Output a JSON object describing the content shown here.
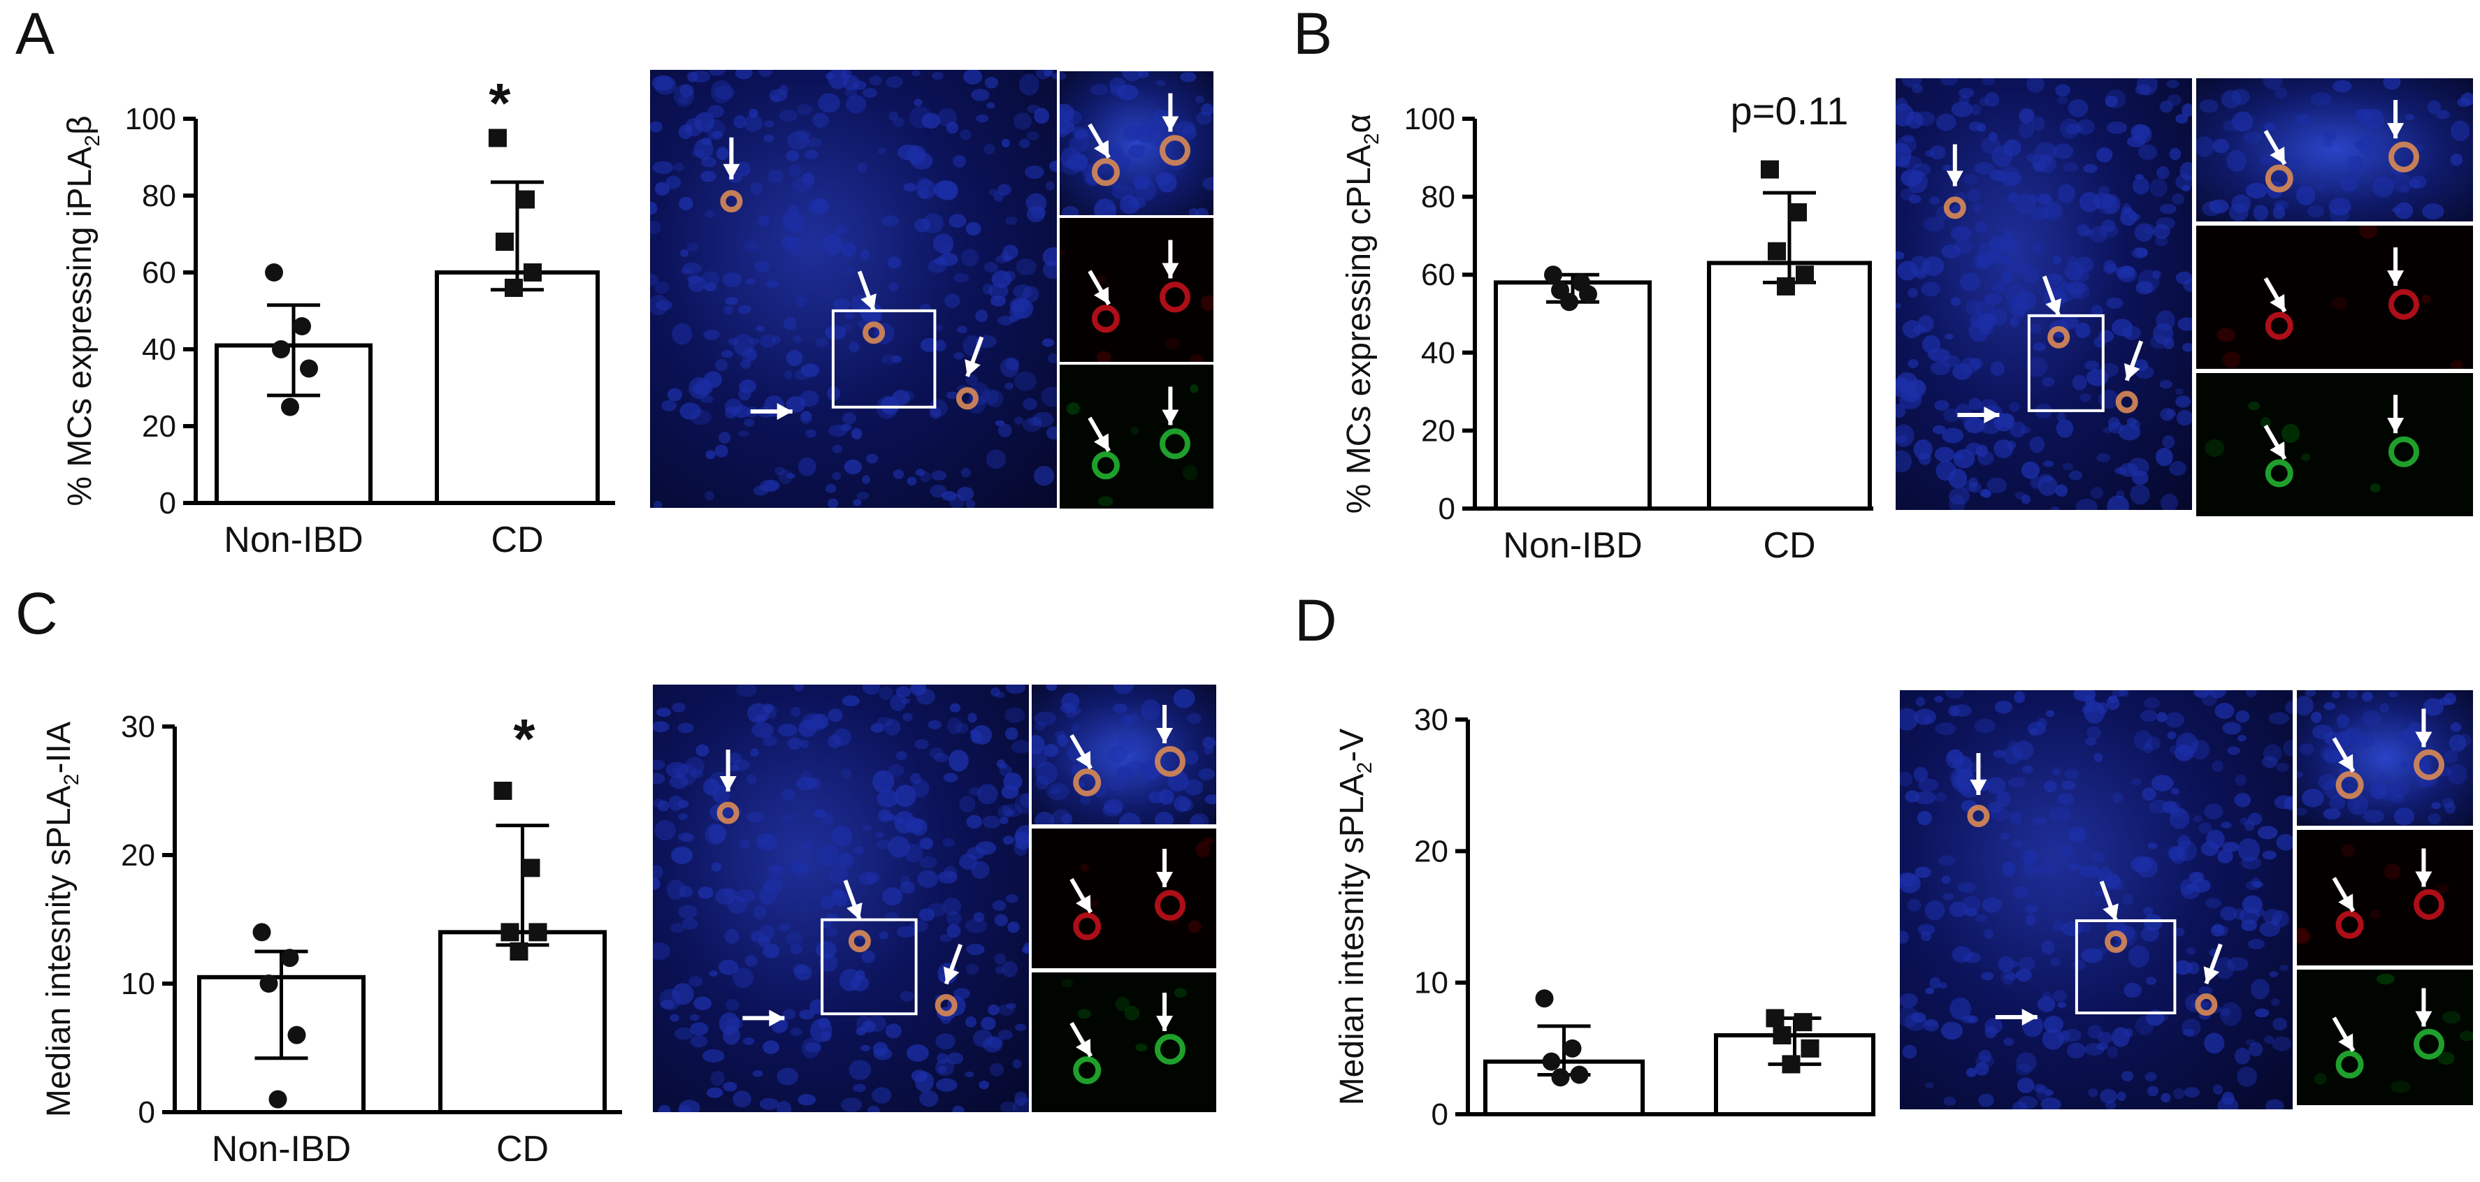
{
  "colors": {
    "bar_fill": "#ffffff",
    "stroke": "#000000",
    "micro_blue": "#1c2fa8",
    "cell_orange": "#d98a55",
    "cell_red": "#c0101a",
    "cell_green": "#22b030"
  },
  "panels": {
    "A": {
      "letter": "A",
      "annotation": "*",
      "micro_icons": [
        "arrow-icon",
        "arrow-icon",
        "arrow-icon",
        "arrow-icon",
        "arrow-icon",
        "arrow-icon"
      ]
    },
    "B": {
      "letter": "B",
      "annotation": "p=0.11",
      "micro_icons": [
        "arrow-icon",
        "arrow-icon",
        "arrowhead-icon",
        "arrow-icon"
      ]
    },
    "C": {
      "letter": "C",
      "annotation": "*",
      "micro_icons": [
        "arrow-icon",
        "arrow-icon",
        "arrow-icon",
        "arrow-icon",
        "arrowhead-icon"
      ]
    },
    "D": {
      "letter": "D",
      "annotation": "",
      "micro_icons": [
        "arrow-icon",
        "arrow-icon",
        "arrow-icon",
        "arrow-icon",
        "arrow-icon"
      ]
    }
  },
  "chart_data": [
    {
      "panel": "A",
      "type": "bar",
      "categories": [
        "Non-IBD",
        "CD"
      ],
      "values": [
        41,
        60
      ],
      "error_upper": [
        51.5,
        83.5
      ],
      "error_lower": [
        28,
        55.5
      ],
      "points": [
        [
          60,
          46,
          40,
          35,
          25
        ],
        [
          95,
          79,
          68,
          60,
          56
        ]
      ],
      "markers": [
        "circle",
        "square"
      ],
      "ylabel": "% MCs expressing iPLA",
      "ylabel_sub": "2",
      "ylabel_suffix": "β",
      "ylim": [
        0,
        100
      ],
      "yticks": [
        "0",
        "20",
        "40",
        "60",
        "80",
        "100"
      ],
      "annotation": "*"
    },
    {
      "panel": "B",
      "type": "bar",
      "categories": [
        "Non-IBD",
        "CD"
      ],
      "values": [
        58,
        63
      ],
      "error_upper": [
        60,
        81
      ],
      "error_lower": [
        53,
        58
      ],
      "points": [
        [
          60,
          58,
          56,
          55,
          53
        ],
        [
          87,
          76,
          66,
          60,
          57
        ]
      ],
      "markers": [
        "circle",
        "square"
      ],
      "ylabel": "% MCs expressing cPLA",
      "ylabel_sub": "2",
      "ylabel_suffix": "α",
      "ylim": [
        0,
        100
      ],
      "yticks": [
        "0",
        "20",
        "40",
        "60",
        "80",
        "100"
      ],
      "annotation": "p=0.11"
    },
    {
      "panel": "C",
      "type": "bar",
      "categories": [
        "Non-IBD",
        "CD"
      ],
      "values": [
        10.5,
        14
      ],
      "error_upper": [
        12.5,
        22.3
      ],
      "error_lower": [
        4.2,
        13
      ],
      "points": [
        [
          14,
          12,
          10,
          6,
          1
        ],
        [
          25,
          19,
          14,
          14,
          12.5
        ]
      ],
      "markers": [
        "circle",
        "square"
      ],
      "ylabel": "Median intesnity  sPLA",
      "ylabel_sub": "2",
      "ylabel_suffix": "-IIA",
      "ylim": [
        0,
        30
      ],
      "yticks": [
        "0",
        "10",
        "20",
        "30"
      ],
      "annotation": "*"
    },
    {
      "panel": "D",
      "type": "bar",
      "categories": [
        "",
        ""
      ],
      "values": [
        4,
        6
      ],
      "error_upper": [
        6.7,
        7.3
      ],
      "error_lower": [
        3,
        3.8
      ],
      "points": [
        [
          8.8,
          5,
          4,
          3,
          2.8
        ],
        [
          7.3,
          7,
          6,
          5,
          3.8
        ]
      ],
      "markers": [
        "circle",
        "square"
      ],
      "ylabel": "Median intesnity  sPLA",
      "ylabel_sub": "2",
      "ylabel_suffix": "-V",
      "ylim": [
        0,
        30
      ],
      "yticks": [
        "0",
        "10",
        "20",
        "30"
      ],
      "annotation": ""
    }
  ]
}
